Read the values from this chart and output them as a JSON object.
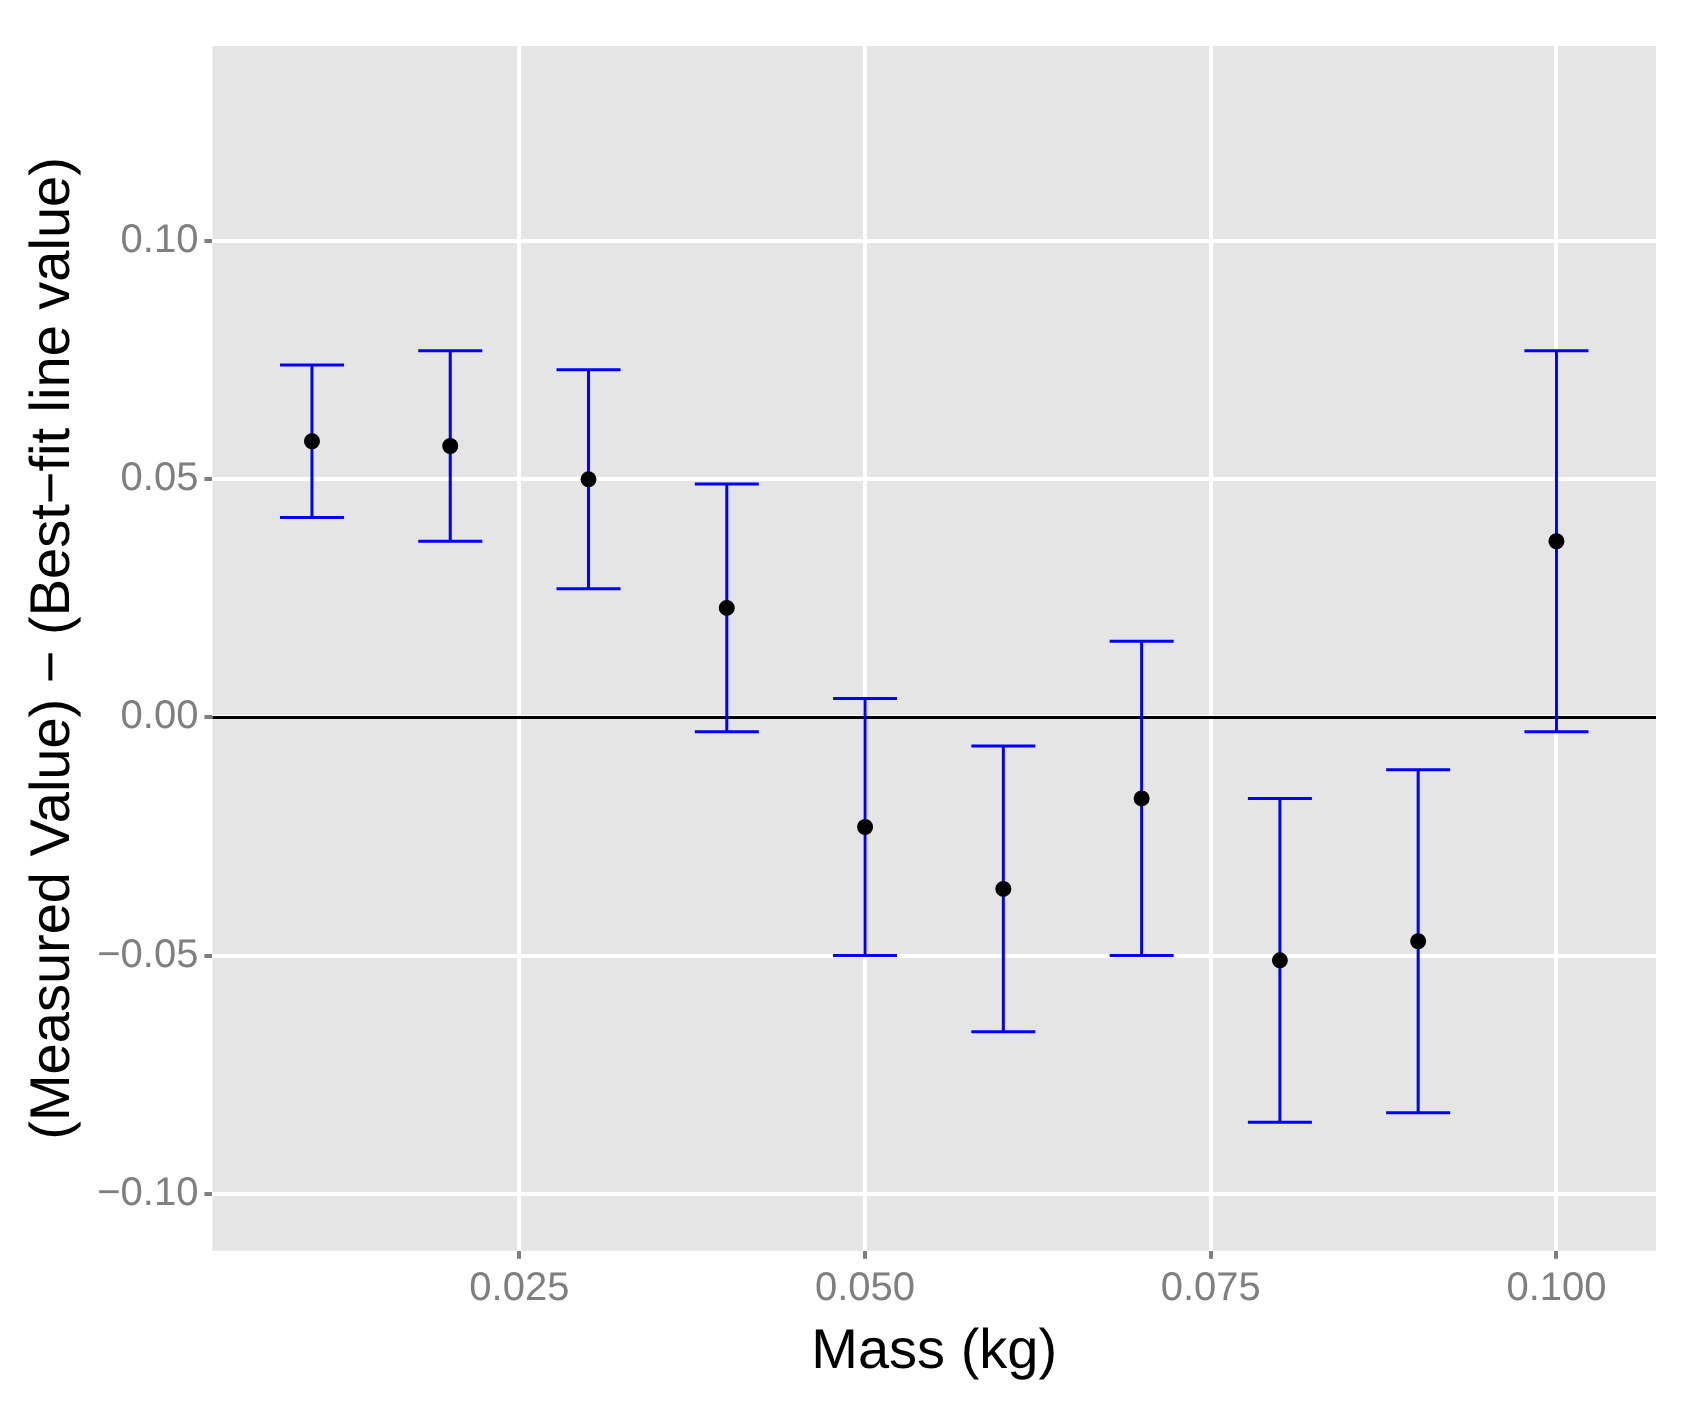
{
  "chart_data": {
    "type": "scatter",
    "xlabel": "Mass (kg)",
    "ylabel": "(Measured Value) − (Best−fit line value)",
    "x": [
      0.01,
      0.02,
      0.03,
      0.04,
      0.05,
      0.06,
      0.07,
      0.08,
      0.09,
      0.1
    ],
    "series": [
      {
        "color": "#000000",
        "values": [
          0.058,
          0.057,
          0.05,
          0.023,
          -0.023,
          -0.036,
          -0.017,
          -0.051,
          -0.047,
          0.037
        ],
        "errors": [
          0.016,
          0.02,
          0.023,
          0.026,
          0.027,
          0.03,
          0.033,
          0.034,
          0.036,
          0.04
        ]
      }
    ],
    "xlim": [
      0.0028,
      0.1072
    ],
    "ylim": [
      -0.112,
      0.141
    ],
    "xticks": [
      {
        "value": 0.025,
        "label": "0.025"
      },
      {
        "value": 0.05,
        "label": "0.050"
      },
      {
        "value": 0.075,
        "label": "0.075"
      },
      {
        "value": 0.1,
        "label": "0.100"
      }
    ],
    "yticks": [
      {
        "value": -0.1,
        "label": "−0.10"
      },
      {
        "value": -0.05,
        "label": "−0.05"
      },
      {
        "value": 0,
        "label": "0.00"
      },
      {
        "value": 0.05,
        "label": "0.05"
      },
      {
        "value": 0.1,
        "label": "0.10"
      }
    ],
    "ref_lines": [
      {
        "axis": "y",
        "value": 0,
        "color": "#000000"
      }
    ],
    "grid": true,
    "marker": "circle",
    "legend": false
  }
}
